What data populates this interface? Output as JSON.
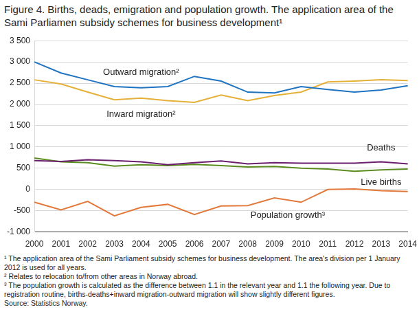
{
  "chart_data": {
    "type": "line",
    "title": "Figure 4. Births, deads, emigration and population growth. The application area of the Sami Parliamen subsidy schemes for business development¹",
    "categories": [
      "2000",
      "2001",
      "2002",
      "2003",
      "2004",
      "2005",
      "2006",
      "2007",
      "2008",
      "2009",
      "2010",
      "2011",
      "2012",
      "2013",
      "2014"
    ],
    "series": [
      {
        "name": "Outward migration²",
        "color": "#1f73c1",
        "values": [
          3000,
          2740,
          2580,
          2420,
          2390,
          2420,
          2660,
          2550,
          2290,
          2270,
          2420,
          2350,
          2290,
          2340,
          2440
        ]
      },
      {
        "name": "Inward migration²",
        "color": "#e5b037",
        "values": [
          2580,
          2480,
          2290,
          2110,
          2150,
          2090,
          2050,
          2220,
          2090,
          2210,
          2290,
          2530,
          2550,
          2580,
          2560
        ]
      },
      {
        "name": "Deaths",
        "color": "#6a1f6c",
        "values": [
          680,
          660,
          700,
          680,
          650,
          580,
          630,
          670,
          600,
          630,
          620,
          620,
          620,
          650,
          600
        ]
      },
      {
        "name": "Live births",
        "color": "#5b8c1f",
        "values": [
          740,
          650,
          630,
          550,
          580,
          560,
          590,
          560,
          530,
          540,
          500,
          480,
          430,
          460,
          480
        ]
      },
      {
        "name": "Population growth³",
        "color": "#e2793a",
        "values": [
          -300,
          -480,
          -280,
          -620,
          -420,
          -350,
          -590,
          -390,
          -380,
          -200,
          -300,
          0,
          10,
          -30,
          -50
        ]
      }
    ],
    "ylim": [
      -1000,
      3500
    ],
    "yticks": [
      {
        "value": -1000,
        "label": "-1 000"
      },
      -500,
      0,
      500,
      {
        "value": 1000,
        "label": "1 000"
      },
      {
        "value": 1500,
        "label": "1 500"
      },
      {
        "value": 2000,
        "label": "2 000"
      },
      {
        "value": 2500,
        "label": "2 500"
      },
      {
        "value": 3000,
        "label": "3 000"
      },
      {
        "value": 3500,
        "label": "3 500"
      }
    ],
    "grid": true,
    "notes": [
      "¹ The application area of the Sami Parliament subsidy schemes for business development. The area's division per 1 January 2012 is used for all years.",
      "² Relates to relocation to/from other areas in Norway abroad.",
      "³ The population growth is calculated as the difference between 1.1 in the relevant year and 1.1 the following year. Due to registration routine, births-deaths+inward migration-outward migration will show slightly different figures."
    ],
    "source": "Source: Statistics Norway."
  }
}
